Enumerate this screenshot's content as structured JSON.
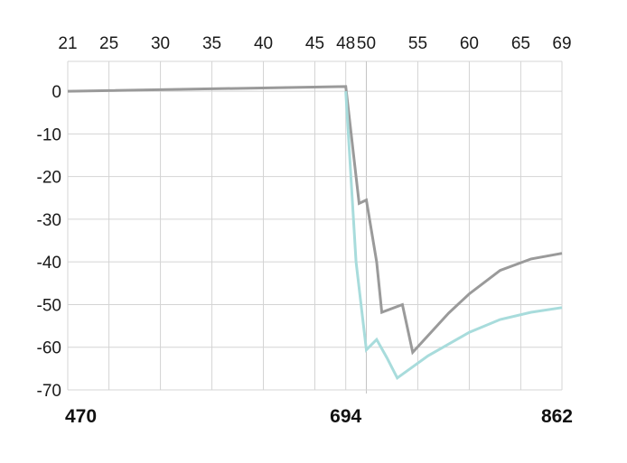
{
  "chart_data": {
    "type": "line",
    "title": "",
    "xlabel": "",
    "ylabel": "",
    "top_axis": {
      "ticks": [
        21,
        25,
        30,
        35,
        40,
        45,
        48,
        50,
        55,
        60,
        65,
        69
      ],
      "labels": [
        "21",
        "25",
        "30",
        "35",
        "40",
        "45",
        "48",
        "50",
        "55",
        "60",
        "65",
        "69"
      ]
    },
    "bottom_axis": {
      "ticks": [
        21,
        48,
        69
      ],
      "labels": [
        "470",
        "694",
        "862"
      ]
    },
    "y_axis": {
      "ticks": [
        0,
        -10,
        -20,
        -30,
        -40,
        -50,
        -60,
        -70
      ],
      "labels": [
        "0",
        "-10",
        "-20",
        "-30",
        "-40",
        "-50",
        "-60",
        "-70"
      ],
      "ylim": [
        -70,
        7
      ]
    },
    "xlim": [
      21,
      69
    ],
    "grid": true,
    "series": [
      {
        "color": "#9a9a9a",
        "points": [
          [
            21,
            0
          ],
          [
            48,
            1.1
          ],
          [
            49.3,
            -26.3
          ],
          [
            50,
            -25.5
          ],
          [
            51,
            -40
          ],
          [
            51.5,
            -51.8
          ],
          [
            53.5,
            -50
          ],
          [
            54.5,
            -61.2
          ],
          [
            58,
            -52
          ],
          [
            60,
            -47.5
          ],
          [
            63,
            -42
          ],
          [
            66,
            -39.3
          ],
          [
            69,
            -38
          ]
        ]
      },
      {
        "color": "#a8dcdc",
        "points": [
          [
            48,
            0
          ],
          [
            49,
            -40
          ],
          [
            50,
            -60.6
          ],
          [
            51,
            -58.2
          ],
          [
            52,
            -62.5
          ],
          [
            53,
            -67.2
          ],
          [
            56,
            -62
          ],
          [
            60,
            -56.5
          ],
          [
            63,
            -53.5
          ],
          [
            66,
            -51.8
          ],
          [
            69,
            -50.7
          ]
        ]
      }
    ],
    "colors": {
      "grid": "#d4d4d4",
      "text": "#1a1a1a"
    }
  }
}
